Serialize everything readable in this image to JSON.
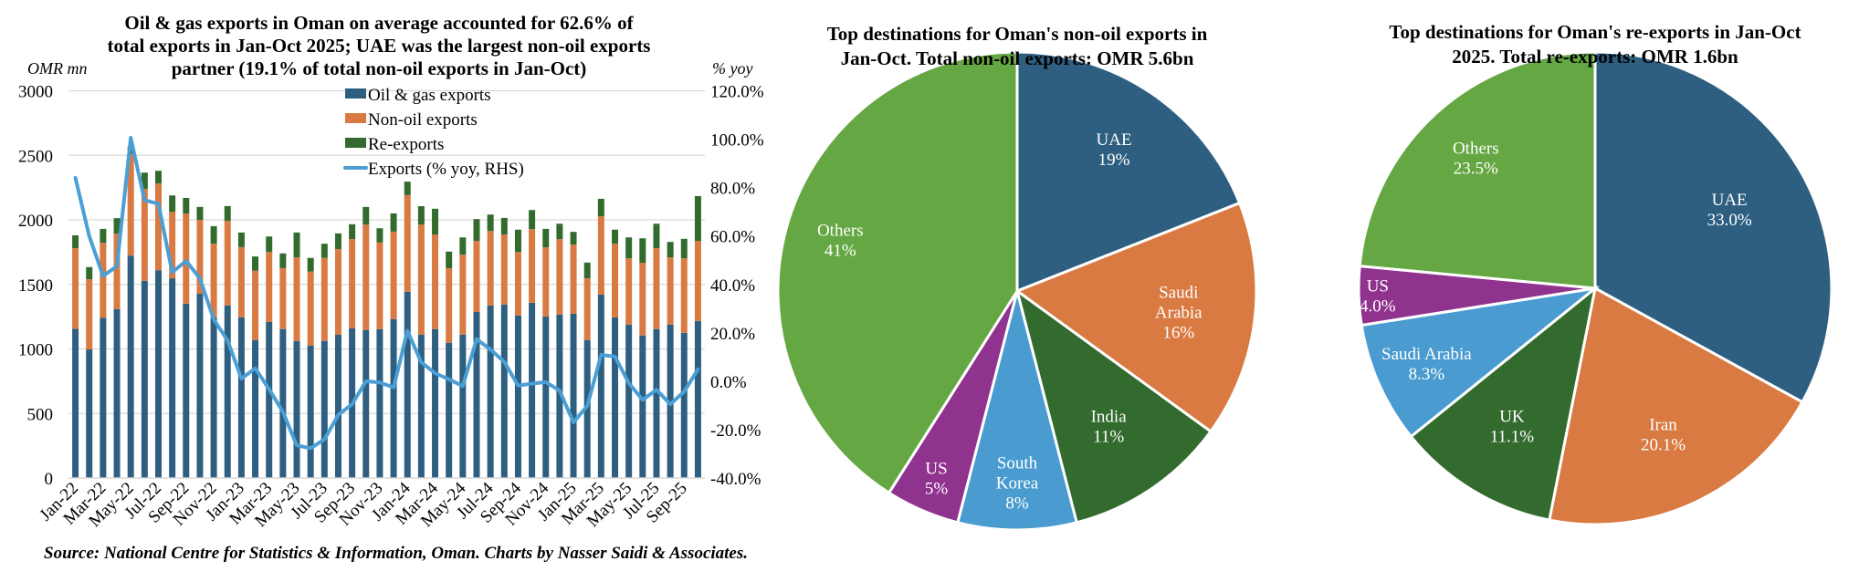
{
  "source": "Source: National Centre for Statistics & Information, Oman. Charts by Nasser Saidi & Associates.",
  "colors": {
    "oil_gas": "#2E5F80",
    "non_oil": "#D97A42",
    "re_exports": "#336B2E",
    "yoy_line": "#4A9FD4",
    "uae": "#2E5F80",
    "saudi": "#D97A42",
    "india_uk": "#336B2E",
    "korea_saudi": "#4A9CD0",
    "us": "#8F338E",
    "others": "#65A743",
    "iran": "#D97A42"
  },
  "chart_data": [
    {
      "type": "bar",
      "subtype": "stacked-bar-with-line",
      "title": "Oil & gas exports in Oman on average accounted for 62.6% of total exports in Jan-Oct 2025; UAE was the largest non-oil exports partner (19.1% of total non-oil exports in Jan-Oct)",
      "title_lines": [
        "Oil & gas exports in Oman on average accounted for 62.6% of",
        "total exports in Jan-Oct 2025; UAE was the largest non-oil exports",
        "partner (19.1% of total non-oil exports in Jan-Oct)"
      ],
      "ylabel": "OMR mn",
      "y2label": "% yoy",
      "ylim": [
        0,
        3000
      ],
      "y2lim": [
        -40,
        120
      ],
      "yticks": [
        "0",
        "500",
        "1000",
        "1500",
        "2000",
        "2500",
        "3000"
      ],
      "y2ticks": [
        "-40.0%",
        "-20.0%",
        "0.0%",
        "20.0%",
        "40.0%",
        "60.0%",
        "80.0%",
        "100.0%",
        "120.0%"
      ],
      "grid": true,
      "legend_position": "top-center",
      "x": [
        "Jan-22",
        "Feb-22",
        "Mar-22",
        "Apr-22",
        "May-22",
        "Jun-22",
        "Jul-22",
        "Aug-22",
        "Sep-22",
        "Oct-22",
        "Nov-22",
        "Dec-22",
        "Jan-23",
        "Feb-23",
        "Mar-23",
        "Apr-23",
        "May-23",
        "Jun-23",
        "Jul-23",
        "Aug-23",
        "Sep-23",
        "Oct-23",
        "Nov-23",
        "Dec-23",
        "Jan-24",
        "Feb-24",
        "Mar-24",
        "Apr-24",
        "May-24",
        "Jun-24",
        "Jul-24",
        "Aug-24",
        "Sep-24",
        "Oct-24",
        "Nov-24",
        "Dec-24",
        "Jan-25",
        "Feb-25",
        "Mar-25",
        "Apr-25",
        "May-25",
        "Jun-25",
        "Jul-25",
        "Aug-25",
        "Sep-25",
        "Oct-25"
      ],
      "xtick_labels_shown": [
        "Jan-22",
        "Mar-22",
        "May-22",
        "Jul-22",
        "Sep-22",
        "Nov-22",
        "Jan-23",
        "Mar-23",
        "May-23",
        "Jul-23",
        "Sep-23",
        "Nov-23",
        "Jan-24",
        "Mar-24",
        "May-24",
        "Jul-24",
        "Sep-24",
        "Nov-24",
        "Jan-25",
        "Mar-25",
        "May-25",
        "Jul-25",
        "Sep-25"
      ],
      "series": [
        {
          "name": "Oil & gas exports",
          "kind": "bar",
          "axis": "left",
          "values": [
            1155,
            996,
            1241,
            1309,
            1723,
            1528,
            1610,
            1547,
            1351,
            1427,
            1245,
            1337,
            1245,
            1069,
            1210,
            1154,
            1062,
            1027,
            1062,
            1111,
            1161,
            1147,
            1154,
            1231,
            1443,
            1111,
            1154,
            1048,
            1111,
            1288,
            1337,
            1344,
            1259,
            1358,
            1252,
            1266,
            1273,
            1069,
            1422,
            1245,
            1189,
            1104,
            1154,
            1189,
            1125,
            1217
          ]
        },
        {
          "name": "Non-oil exports",
          "kind": "bar",
          "axis": "left",
          "values": [
            625,
            544,
            581,
            584,
            787,
            711,
            671,
            515,
            697,
            573,
            570,
            655,
            544,
            537,
            541,
            472,
            647,
            572,
            643,
            662,
            690,
            816,
            671,
            678,
            749,
            852,
            732,
            577,
            619,
            548,
            577,
            542,
            492,
            570,
            535,
            584,
            535,
            478,
            605,
            570,
            513,
            563,
            626,
            520,
            577,
            619
          ]
        },
        {
          "name": "Re-exports",
          "kind": "bar",
          "axis": "left",
          "values": [
            100,
            94,
            108,
            120,
            55,
            127,
            99,
            127,
            122,
            100,
            136,
            115,
            113,
            110,
            120,
            114,
            193,
            106,
            110,
            122,
            115,
            137,
            110,
            141,
            104,
            143,
            200,
            129,
            134,
            170,
            127,
            129,
            173,
            148,
            143,
            120,
            99,
            122,
            136,
            109,
            162,
            190,
            190,
            120,
            151,
            348
          ]
        },
        {
          "name": "Exports (% yoy, RHS)",
          "kind": "line",
          "axis": "right",
          "values": [
            84,
            60,
            43.5,
            47.5,
            100.6,
            74.8,
            73.3,
            45,
            49.7,
            42.5,
            25.5,
            16.8,
            1.1,
            5.3,
            -3.3,
            -12.7,
            -26.5,
            -27.7,
            -24,
            -13.9,
            -9.5,
            0,
            -0.5,
            -2.6,
            20.8,
            7.8,
            3.3,
            0.8,
            -2,
            17.4,
            13.1,
            8,
            -1.8,
            -1,
            -0.4,
            -3.9,
            -17,
            -10.2,
            10.9,
            10.2,
            -0.8,
            -7.7,
            -3.5,
            -9.5,
            -4.3,
            4.9
          ]
        }
      ]
    },
    {
      "type": "pie",
      "title": "Top destinations for Oman's non-oil exports in Jan-Oct. Total non-oil exports: OMR 5.6bn",
      "title_lines": [
        "Top destinations for Oman's non-oil exports in",
        "Jan-Oct. Total non-oil exports: OMR 5.6bn"
      ],
      "slices": [
        {
          "label": "UAE",
          "label_lines": [
            "UAE"
          ],
          "value": 19,
          "display": "19%",
          "color_key": "uae"
        },
        {
          "label": "Saudi Arabia",
          "label_lines": [
            "Saudi",
            "Arabia"
          ],
          "value": 16,
          "display": "16%",
          "color_key": "saudi"
        },
        {
          "label": "India",
          "label_lines": [
            "India"
          ],
          "value": 11,
          "display": "11%",
          "color_key": "india_uk"
        },
        {
          "label": "South Korea",
          "label_lines": [
            "South",
            "Korea"
          ],
          "value": 8,
          "display": "8%",
          "color_key": "korea_saudi"
        },
        {
          "label": "US",
          "label_lines": [
            "US"
          ],
          "value": 5,
          "display": "5%",
          "color_key": "us"
        },
        {
          "label": "Others",
          "label_lines": [
            "Others"
          ],
          "value": 41,
          "display": "41%",
          "color_key": "others"
        }
      ]
    },
    {
      "type": "pie",
      "title": "Top destinations for Oman's re-exports in Jan-Oct 2025. Total re-exports: OMR 1.6bn",
      "title_lines": [
        "Top destinations for Oman's re-exports in Jan-Oct",
        "2025. Total re-exports: OMR 1.6bn"
      ],
      "slices": [
        {
          "label": "UAE",
          "label_lines": [
            "UAE"
          ],
          "value": 33.0,
          "display": "33.0%",
          "color_key": "uae"
        },
        {
          "label": "Iran",
          "label_lines": [
            "Iran"
          ],
          "value": 20.1,
          "display": "20.1%",
          "color_key": "iran"
        },
        {
          "label": "UK",
          "label_lines": [
            "UK"
          ],
          "value": 11.1,
          "display": "11.1%",
          "color_key": "india_uk"
        },
        {
          "label": "Saudi Arabia",
          "label_lines": [
            "Saudi Arabia"
          ],
          "value": 8.3,
          "display": "8.3%",
          "color_key": "korea_saudi"
        },
        {
          "label": "US",
          "label_lines": [
            "US"
          ],
          "value": 4.0,
          "display": "4.0%",
          "color_key": "us"
        },
        {
          "label": "Others",
          "label_lines": [
            "Others"
          ],
          "value": 23.5,
          "display": "23.5%",
          "color_key": "others"
        }
      ]
    }
  ]
}
